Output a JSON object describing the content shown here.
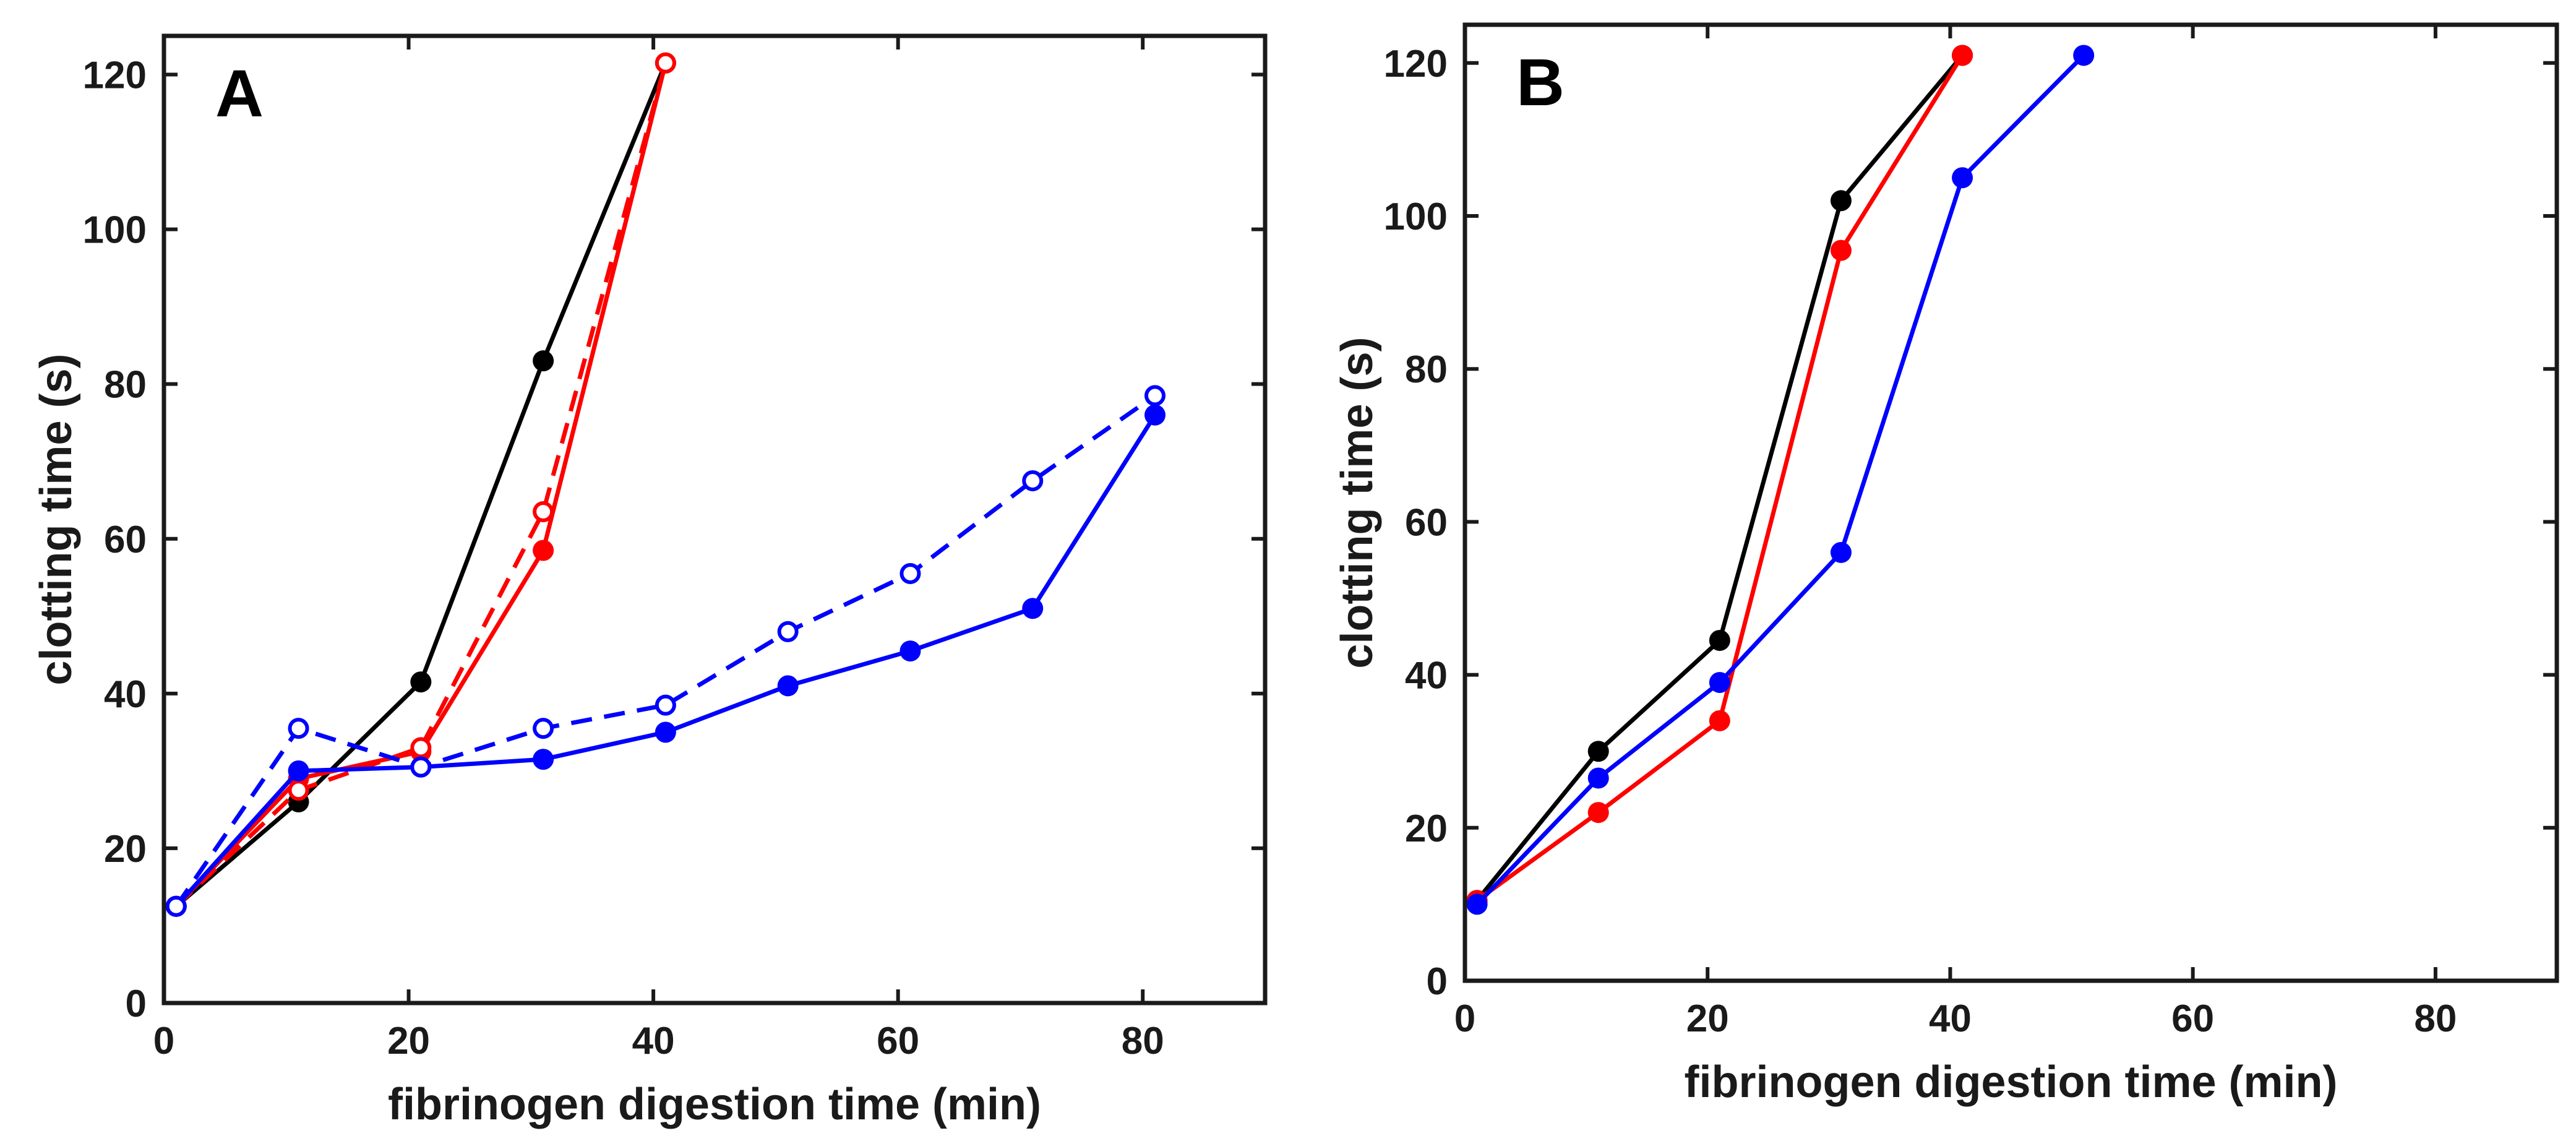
{
  "chart_data": [
    {
      "type": "line",
      "panel_label": "A",
      "xlabel": "fibrinogen digestion time (min)",
      "ylabel": "clotting time (s)",
      "xlim": [
        0,
        90
      ],
      "ylim": [
        0,
        125
      ],
      "xticks": [
        0,
        20,
        40,
        60,
        80
      ],
      "yticks": [
        0,
        20,
        40,
        60,
        80,
        100,
        120
      ],
      "grid": false,
      "series": [
        {
          "color": "#000000",
          "style": "solid",
          "marker": "filled",
          "x": [
            1,
            11,
            21,
            31,
            41
          ],
          "y": [
            12.5,
            26,
            41.5,
            83,
            121.5
          ]
        },
        {
          "color": "#ff0000",
          "style": "solid",
          "marker": "filled",
          "x": [
            1,
            11,
            21,
            31,
            41
          ],
          "y": [
            12.5,
            29,
            32.5,
            58.5,
            121.5
          ]
        },
        {
          "color": "#ff0000",
          "style": "dashed",
          "marker": "open",
          "x": [
            1,
            11,
            21,
            31,
            41
          ],
          "y": [
            12.5,
            27.5,
            33,
            63.5,
            121.5
          ]
        },
        {
          "color": "#0000ff",
          "style": "solid",
          "marker": "filled",
          "x": [
            1,
            11,
            21,
            31,
            41,
            51,
            61,
            71,
            81
          ],
          "y": [
            12.5,
            30,
            30.5,
            31.5,
            35,
            41,
            45.5,
            51,
            76
          ]
        },
        {
          "color": "#0000ff",
          "style": "dashed",
          "marker": "open",
          "x": [
            1,
            11,
            21,
            31,
            41,
            51,
            61,
            71,
            81
          ],
          "y": [
            12.5,
            35.5,
            30.5,
            35.5,
            38.5,
            48,
            55.5,
            67.5,
            78.5
          ]
        }
      ]
    },
    {
      "type": "line",
      "panel_label": "B",
      "xlabel": "fibrinogen digestion time (min)",
      "ylabel": "clotting time (s)",
      "xlim": [
        0,
        90
      ],
      "ylim": [
        0,
        125
      ],
      "xticks": [
        0,
        20,
        40,
        60,
        80
      ],
      "yticks": [
        0,
        20,
        40,
        60,
        80,
        100,
        120
      ],
      "grid": false,
      "series": [
        {
          "color": "#000000",
          "style": "solid",
          "marker": "filled",
          "x": [
            1,
            11,
            21,
            31,
            41
          ],
          "y": [
            10.5,
            30,
            44.5,
            102,
            121
          ]
        },
        {
          "color": "#ff0000",
          "style": "solid",
          "marker": "filled",
          "x": [
            1,
            11,
            21,
            31,
            41
          ],
          "y": [
            10.5,
            22,
            34,
            95.5,
            121
          ]
        },
        {
          "color": "#0000ff",
          "style": "solid",
          "marker": "filled",
          "x": [
            1,
            11,
            21,
            31,
            41,
            51
          ],
          "y": [
            10,
            26.5,
            39,
            56,
            105,
            121
          ]
        }
      ]
    }
  ]
}
